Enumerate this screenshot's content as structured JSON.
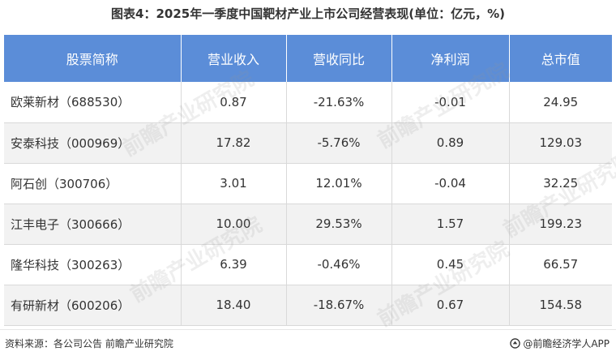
{
  "title": "图表4：2025年一季度中国靶材产业上市公司经营表现(单位：亿元，%)",
  "table": {
    "headers": [
      "股票简称",
      "营业收入",
      "营收同比",
      "净利润",
      "总市值"
    ],
    "rows": [
      [
        "欧莱新材（688530）",
        "0.87",
        "-21.63%",
        "-0.01",
        "24.95"
      ],
      [
        "安泰科技（000969）",
        "17.82",
        "-5.76%",
        "0.89",
        "129.03"
      ],
      [
        "阿石创（300706）",
        "3.01",
        "12.01%",
        "-0.04",
        "32.25"
      ],
      [
        "江丰电子（300666）",
        "10.00",
        "29.53%",
        "1.57",
        "199.23"
      ],
      [
        "隆华科技（300263）",
        "6.39",
        "-0.46%",
        "0.45",
        "66.57"
      ],
      [
        "有研新材（600206）",
        "18.40",
        "-18.67%",
        "0.67",
        "154.58"
      ]
    ]
  },
  "footer": {
    "source": "资料来源：各公司公告 前瞻产业研究院",
    "brand": "@前瞻经济学人APP"
  },
  "watermark": "前瞻产业研究院",
  "colors": {
    "header_bg": "#5b8dd8",
    "row_alt_bg": "#f2f2f2"
  }
}
